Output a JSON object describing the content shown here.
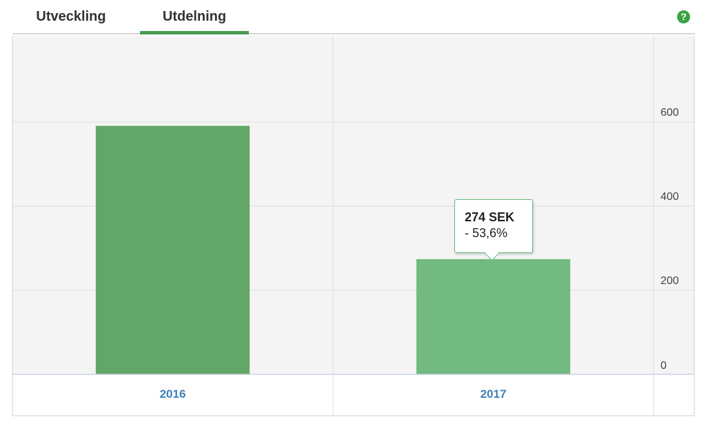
{
  "tabs": [
    {
      "label": "Utveckling",
      "active": false
    },
    {
      "label": "Utdelning",
      "active": true
    }
  ],
  "help_icon": {
    "glyph": "?",
    "color": "#3aa546"
  },
  "chart_data": {
    "type": "bar",
    "categories": [
      "2016",
      "2017"
    ],
    "values": [
      591,
      274
    ],
    "colors": [
      "#62a768",
      "#72ba7f"
    ],
    "ylim": [
      0,
      800
    ],
    "yticks": [
      0,
      200,
      400,
      600
    ],
    "y_axis_side": "right",
    "grid": true,
    "tooltip": {
      "category": "2017",
      "value_text": "274 SEK",
      "change_text": "- 53,6%"
    }
  }
}
